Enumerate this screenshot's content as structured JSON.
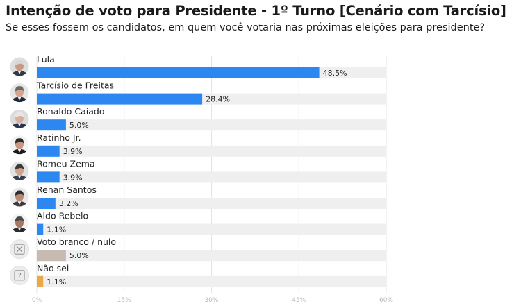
{
  "title": "Intenção de voto para Presidente - 1º Turno [Cenário com Tarcísio]",
  "subtitle": "Se esses fossem os candidatos, em quem você votaria nas próximas eleições para presidente?",
  "colors": {
    "candidate": "#2d87f0",
    "blank": "#c8bab2",
    "dont_know": "#e9a84a",
    "track": "#efefef",
    "grid": "#e4e4e4"
  },
  "chart_data": {
    "type": "bar",
    "orientation": "horizontal",
    "title": "Intenção de voto para Presidente - 1º Turno [Cenário com Tarcísio]",
    "subtitle": "Se esses fossem os candidatos, em quem você votaria nas próximas eleições para presidente?",
    "xlim": [
      0,
      60
    ],
    "ticks": [
      0,
      15,
      30,
      45,
      60
    ],
    "tick_labels": [
      "0%",
      "15%",
      "30%",
      "45%",
      "60%"
    ],
    "categories": [
      "Lula",
      "Tarcísio de Freitas",
      "Ronaldo Caiado",
      "Ratinho Jr.",
      "Romeu Zema",
      "Renan Santos",
      "Aldo Rebelo",
      "Voto branco / nulo",
      "Não sei"
    ],
    "values": [
      48.5,
      28.4,
      5.0,
      3.9,
      3.9,
      3.2,
      1.1,
      5.0,
      1.1
    ],
    "value_labels": [
      "48.5%",
      "28.4%",
      "5.0%",
      "3.9%",
      "3.9%",
      "3.2%",
      "1.1%",
      "5.0%",
      "1.1%"
    ],
    "kinds": [
      "candidate",
      "candidate",
      "candidate",
      "candidate",
      "candidate",
      "candidate",
      "candidate",
      "blank",
      "dont_know"
    ],
    "icons": [
      "avatar-lula-icon",
      "avatar-tarcisio-icon",
      "avatar-caiado-icon",
      "avatar-ratinho-icon",
      "avatar-zema-icon",
      "avatar-renan-icon",
      "avatar-aldo-icon",
      "ballot-x-icon",
      "question-mark-icon"
    ]
  }
}
